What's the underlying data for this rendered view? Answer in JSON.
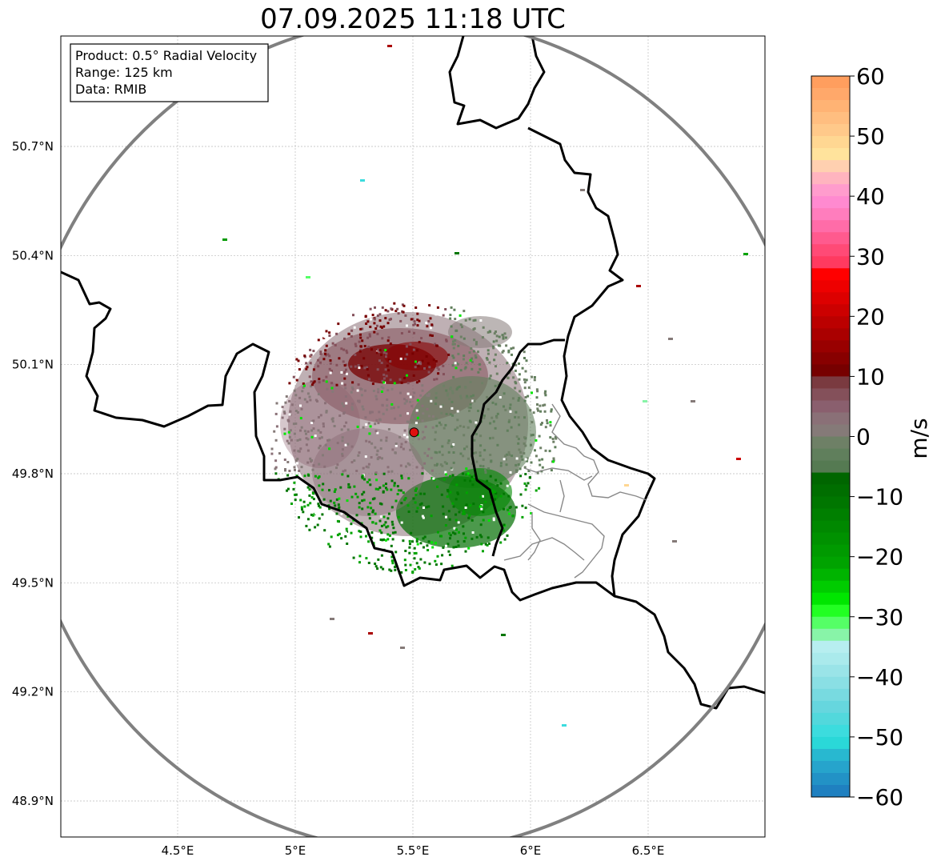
{
  "title": "07.09.2025 11:18 UTC",
  "info_box": {
    "product": "Product: 0.5° Radial Velocity",
    "range": "Range: 125 km",
    "data": "Data: RMIB"
  },
  "map": {
    "lon_range": [
      4.0,
      7.0
    ],
    "lat_range": [
      48.8,
      51.0
    ],
    "x_ticks": [
      {
        "value": 4.5,
        "label": "4.5°E"
      },
      {
        "value": 5.0,
        "label": "5°E"
      },
      {
        "value": 5.5,
        "label": "5.5°E"
      },
      {
        "value": 6.0,
        "label": "6°E"
      },
      {
        "value": 6.5,
        "label": "6.5°E"
      }
    ],
    "y_ticks": [
      {
        "value": 48.9,
        "label": "48.9°N"
      },
      {
        "value": 49.2,
        "label": "49.2°N"
      },
      {
        "value": 49.5,
        "label": "49.5°N"
      },
      {
        "value": 49.8,
        "label": "49.8°N"
      },
      {
        "value": 50.1,
        "label": "50.1°N"
      },
      {
        "value": 50.4,
        "label": "50.4°N"
      },
      {
        "value": 50.7,
        "label": "50.7°N"
      }
    ],
    "radar_site": {
      "lon": 5.505,
      "lat": 49.914
    },
    "range_ring_km": 125,
    "grid": true
  },
  "colorbar": {
    "label": "m/s",
    "min": -60,
    "max": 60,
    "ticks": [
      {
        "value": 60,
        "label": "60"
      },
      {
        "value": 50,
        "label": "50"
      },
      {
        "value": 40,
        "label": "40"
      },
      {
        "value": 30,
        "label": "30"
      },
      {
        "value": 20,
        "label": "20"
      },
      {
        "value": 10,
        "label": "10"
      },
      {
        "value": 0,
        "label": "0"
      },
      {
        "value": -10,
        "label": "−10"
      },
      {
        "value": -20,
        "label": "−20"
      },
      {
        "value": -30,
        "label": "−30"
      },
      {
        "value": -40,
        "label": "−40"
      },
      {
        "value": -50,
        "label": "−50"
      },
      {
        "value": -60,
        "label": "−60"
      }
    ],
    "bands": [
      {
        "from": 58,
        "to": 60,
        "color": "#ff9e5e"
      },
      {
        "from": 56,
        "to": 58,
        "color": "#ffa86a"
      },
      {
        "from": 54,
        "to": 56,
        "color": "#ffb374"
      },
      {
        "from": 52,
        "to": 54,
        "color": "#ffbe80"
      },
      {
        "from": 50,
        "to": 52,
        "color": "#ffc98a"
      },
      {
        "from": 48,
        "to": 50,
        "color": "#ffd792"
      },
      {
        "from": 46,
        "to": 48,
        "color": "#ffe39c"
      },
      {
        "from": 44,
        "to": 46,
        "color": "#ffd0b0"
      },
      {
        "from": 42,
        "to": 44,
        "color": "#ffb4bf"
      },
      {
        "from": 40,
        "to": 42,
        "color": "#ff9ccd"
      },
      {
        "from": 38,
        "to": 40,
        "color": "#ff8ad0"
      },
      {
        "from": 36,
        "to": 38,
        "color": "#ff7dbd"
      },
      {
        "from": 34,
        "to": 36,
        "color": "#ff6ca8"
      },
      {
        "from": 32,
        "to": 34,
        "color": "#ff5a8e"
      },
      {
        "from": 30,
        "to": 32,
        "color": "#ff4a76"
      },
      {
        "from": 28,
        "to": 30,
        "color": "#ff3a60"
      },
      {
        "from": 26,
        "to": 28,
        "color": "#ff0000"
      },
      {
        "from": 24,
        "to": 26,
        "color": "#ee0000"
      },
      {
        "from": 22,
        "to": 24,
        "color": "#dd0000"
      },
      {
        "from": 20,
        "to": 22,
        "color": "#cc0000"
      },
      {
        "from": 18,
        "to": 20,
        "color": "#bb0000"
      },
      {
        "from": 16,
        "to": 18,
        "color": "#aa0000"
      },
      {
        "from": 14,
        "to": 16,
        "color": "#990000"
      },
      {
        "from": 12,
        "to": 14,
        "color": "#880000"
      },
      {
        "from": 10,
        "to": 12,
        "color": "#770000"
      },
      {
        "from": 8,
        "to": 10,
        "color": "#7a3a40"
      },
      {
        "from": 6,
        "to": 8,
        "color": "#84505a"
      },
      {
        "from": 4,
        "to": 6,
        "color": "#8a5f6e"
      },
      {
        "from": 2,
        "to": 4,
        "color": "#8a7077"
      },
      {
        "from": 0,
        "to": 2,
        "color": "#857a78"
      },
      {
        "from": -2,
        "to": 0,
        "color": "#6e8066"
      },
      {
        "from": -4,
        "to": -2,
        "color": "#607f5c"
      },
      {
        "from": -6,
        "to": -4,
        "color": "#557a52"
      },
      {
        "from": -8,
        "to": -6,
        "color": "#006600"
      },
      {
        "from": -10,
        "to": -8,
        "color": "#006e00"
      },
      {
        "from": -12,
        "to": -10,
        "color": "#007600"
      },
      {
        "from": -14,
        "to": -12,
        "color": "#007f00"
      },
      {
        "from": -16,
        "to": -14,
        "color": "#008800"
      },
      {
        "from": -18,
        "to": -16,
        "color": "#009100"
      },
      {
        "from": -20,
        "to": -18,
        "color": "#009a00"
      },
      {
        "from": -22,
        "to": -20,
        "color": "#00a300"
      },
      {
        "from": -24,
        "to": -22,
        "color": "#00b400"
      },
      {
        "from": -26,
        "to": -24,
        "color": "#00cc00"
      },
      {
        "from": -28,
        "to": -26,
        "color": "#00e600"
      },
      {
        "from": -30,
        "to": -28,
        "color": "#22ff22"
      },
      {
        "from": -32,
        "to": -30,
        "color": "#55ff66"
      },
      {
        "from": -34,
        "to": -32,
        "color": "#88f4a8"
      },
      {
        "from": -36,
        "to": -34,
        "color": "#b7eef0"
      },
      {
        "from": -38,
        "to": -36,
        "color": "#aaeaec"
      },
      {
        "from": -40,
        "to": -38,
        "color": "#9ae4e8"
      },
      {
        "from": -42,
        "to": -40,
        "color": "#8adfe4"
      },
      {
        "from": -44,
        "to": -42,
        "color": "#78dae0"
      },
      {
        "from": -46,
        "to": -44,
        "color": "#66d6de"
      },
      {
        "from": -48,
        "to": -46,
        "color": "#52d8dc"
      },
      {
        "from": -50,
        "to": -48,
        "color": "#3cdcde"
      },
      {
        "from": -52,
        "to": -50,
        "color": "#2ad8d8"
      },
      {
        "from": -54,
        "to": -52,
        "color": "#28b8d0"
      },
      {
        "from": -56,
        "to": -54,
        "color": "#26a4cc"
      },
      {
        "from": -58,
        "to": -56,
        "color": "#2292c6"
      },
      {
        "from": -60,
        "to": -58,
        "color": "#1f80c0"
      }
    ]
  },
  "colors": {
    "border": "#000000",
    "admin_border": "#888888",
    "range_ring": "#808080",
    "grid": "#bbbbbb",
    "radar_marker": "#e01010"
  }
}
